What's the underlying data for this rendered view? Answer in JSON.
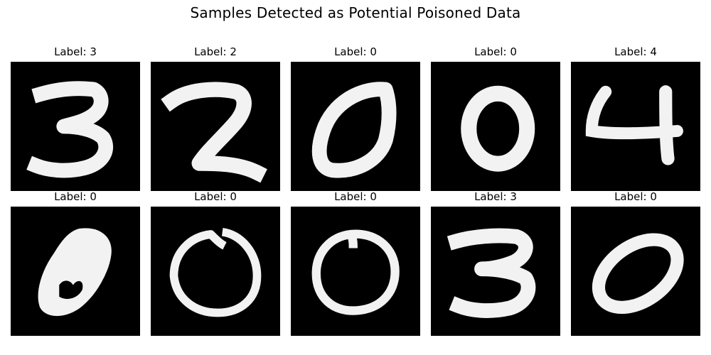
{
  "title": "Samples Detected as Potential Poisoned Data",
  "samples": [
    {
      "label": "Label: 3",
      "digit": "3",
      "style": "three-a"
    },
    {
      "label": "Label: 2",
      "digit": "2",
      "style": "two"
    },
    {
      "label": "Label: 0",
      "digit": "0",
      "style": "zero-tilted-thick"
    },
    {
      "label": "Label: 0",
      "digit": "0",
      "style": "zero-round-thick"
    },
    {
      "label": "Label: 4",
      "digit": "4",
      "style": "four"
    },
    {
      "label": "Label: 0",
      "digit": "0",
      "style": "zero-blob"
    },
    {
      "label": "Label: 0",
      "digit": "0",
      "style": "zero-thin-a"
    },
    {
      "label": "Label: 0",
      "digit": "0",
      "style": "zero-thin-b"
    },
    {
      "label": "Label: 3",
      "digit": "3",
      "style": "three-b"
    },
    {
      "label": "Label: 0",
      "digit": "0",
      "style": "zero-tilted-wide"
    }
  ],
  "colors": {
    "background": "#000000",
    "stroke": "#ffffff"
  }
}
